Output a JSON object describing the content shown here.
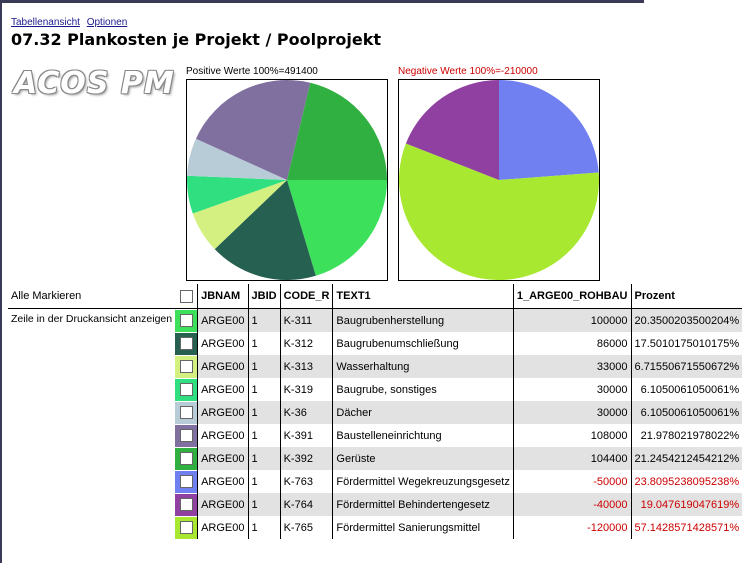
{
  "links": {
    "tabellenansicht": "Tabellenansicht",
    "optionen": "Optionen"
  },
  "title": "07.32 Plankosten je Projekt / Poolprojekt",
  "logo": "ACOS PM",
  "positive_label": "Positive Werte 100%=491400",
  "negative_label": "Negative Werte 100%=-210000",
  "table": {
    "alle_markieren": "Alle Markieren",
    "side_text": "Zeile in der Druckansicht anzeigen",
    "headers": [
      "JBNAM",
      "JBID",
      "CODE_R",
      "TEXT1",
      "1_ARGE00_ROHBAU",
      "Prozent"
    ],
    "rows": [
      {
        "color": "#3ce05a",
        "jbnam": "ARGE00",
        "jbid": "1",
        "code": "K-311",
        "text": "Baugrubenherstellung",
        "value": "100000",
        "pct": "20.3500203500204%",
        "neg": false
      },
      {
        "color": "#266050",
        "jbnam": "ARGE00",
        "jbid": "1",
        "code": "K-312",
        "text": "Baugrubenumschließung",
        "value": "86000",
        "pct": "17.5010175010175%",
        "neg": false
      },
      {
        "color": "#d4f080",
        "jbnam": "ARGE00",
        "jbid": "1",
        "code": "K-313",
        "text": "Wasserhaltung",
        "value": "33000",
        "pct": "6.71550671550672%",
        "neg": false
      },
      {
        "color": "#30e080",
        "jbnam": "ARGE00",
        "jbid": "1",
        "code": "K-319",
        "text": "Baugrube, sonstiges",
        "value": "30000",
        "pct": "6.1050061050061%",
        "neg": false
      },
      {
        "color": "#b8ccd8",
        "jbnam": "ARGE00",
        "jbid": "1",
        "code": "K-36",
        "text": "Dächer",
        "value": "30000",
        "pct": "6.1050061050061%",
        "neg": false
      },
      {
        "color": "#8070a0",
        "jbnam": "ARGE00",
        "jbid": "1",
        "code": "K-391",
        "text": "Baustelleneinrichtung",
        "value": "108000",
        "pct": "21.978021978022%",
        "neg": false
      },
      {
        "color": "#30b040",
        "jbnam": "ARGE00",
        "jbid": "1",
        "code": "K-392",
        "text": "Gerüste",
        "value": "104400",
        "pct": "21.2454212454212%",
        "neg": false
      },
      {
        "color": "#7080f0",
        "jbnam": "ARGE00",
        "jbid": "1",
        "code": "K-763",
        "text": "Fördermittel Wegekreuzungsgesetz",
        "value": "-50000",
        "pct": "23.8095238095238%",
        "neg": true
      },
      {
        "color": "#9040a0",
        "jbnam": "ARGE00",
        "jbid": "1",
        "code": "K-764",
        "text": "Fördermittel Behindertengesetz",
        "value": "-40000",
        "pct": "19.047619047619%",
        "neg": true
      },
      {
        "color": "#a8e830",
        "jbnam": "ARGE00",
        "jbid": "1",
        "code": "K-765",
        "text": "Fördermittel Sanierungsmittel",
        "value": "-120000",
        "pct": "57.1428571428571%",
        "neg": true
      }
    ]
  },
  "chart_data": [
    {
      "type": "pie",
      "title": "Positive Werte 100%=491400",
      "categories": [
        "K-311",
        "K-312",
        "K-313",
        "K-319",
        "K-36",
        "K-391",
        "K-392"
      ],
      "values": [
        100000,
        86000,
        33000,
        30000,
        30000,
        108000,
        104400
      ],
      "colors": [
        "#3ce05a",
        "#266050",
        "#d4f080",
        "#30e080",
        "#b8ccd8",
        "#8070a0",
        "#30b040"
      ]
    },
    {
      "type": "pie",
      "title": "Negative Werte 100%=-210000",
      "categories": [
        "K-763",
        "K-764",
        "K-765"
      ],
      "values": [
        50000,
        40000,
        120000
      ],
      "colors": [
        "#7080f0",
        "#9040a0",
        "#a8e830"
      ]
    }
  ]
}
